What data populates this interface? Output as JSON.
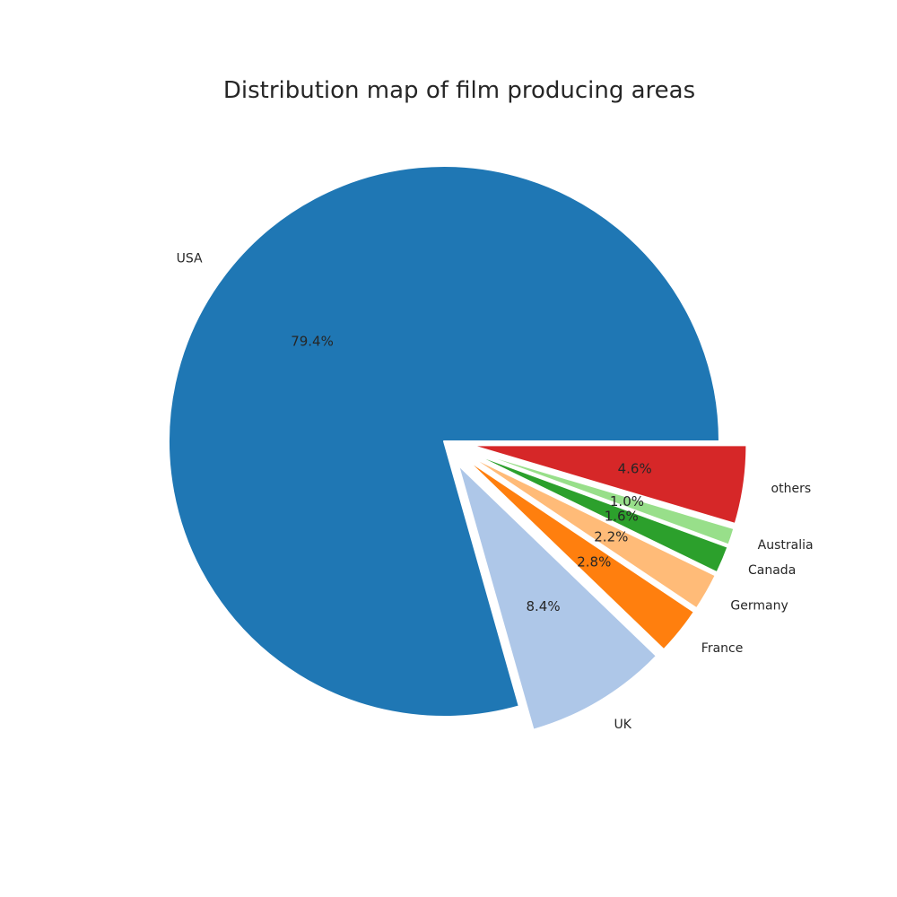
{
  "chart_data": {
    "type": "pie",
    "title": "Distribution map of film producing areas",
    "start_angle_deg": 0,
    "direction": "counterclockwise",
    "slices": [
      {
        "label": "USA",
        "percent": 79.4,
        "pct_text": "79.4%",
        "color": "#1f77b4",
        "exploded": false
      },
      {
        "label": "UK",
        "percent": 8.4,
        "pct_text": "8.4%",
        "color": "#aec7e8",
        "exploded": true
      },
      {
        "label": "France",
        "percent": 2.8,
        "pct_text": "2.8%",
        "color": "#ff7f0e",
        "exploded": true
      },
      {
        "label": "Germany",
        "percent": 2.2,
        "pct_text": "2.2%",
        "color": "#ffbb78",
        "exploded": true
      },
      {
        "label": "Canada",
        "percent": 1.6,
        "pct_text": "1.6%",
        "color": "#2ca02c",
        "exploded": true
      },
      {
        "label": "Australia",
        "percent": 1.0,
        "pct_text": "1.0%",
        "color": "#98df8a",
        "exploded": true
      },
      {
        "label": "others",
        "percent": 4.6,
        "pct_text": "4.6%",
        "color": "#d62728",
        "exploded": true
      }
    ]
  }
}
